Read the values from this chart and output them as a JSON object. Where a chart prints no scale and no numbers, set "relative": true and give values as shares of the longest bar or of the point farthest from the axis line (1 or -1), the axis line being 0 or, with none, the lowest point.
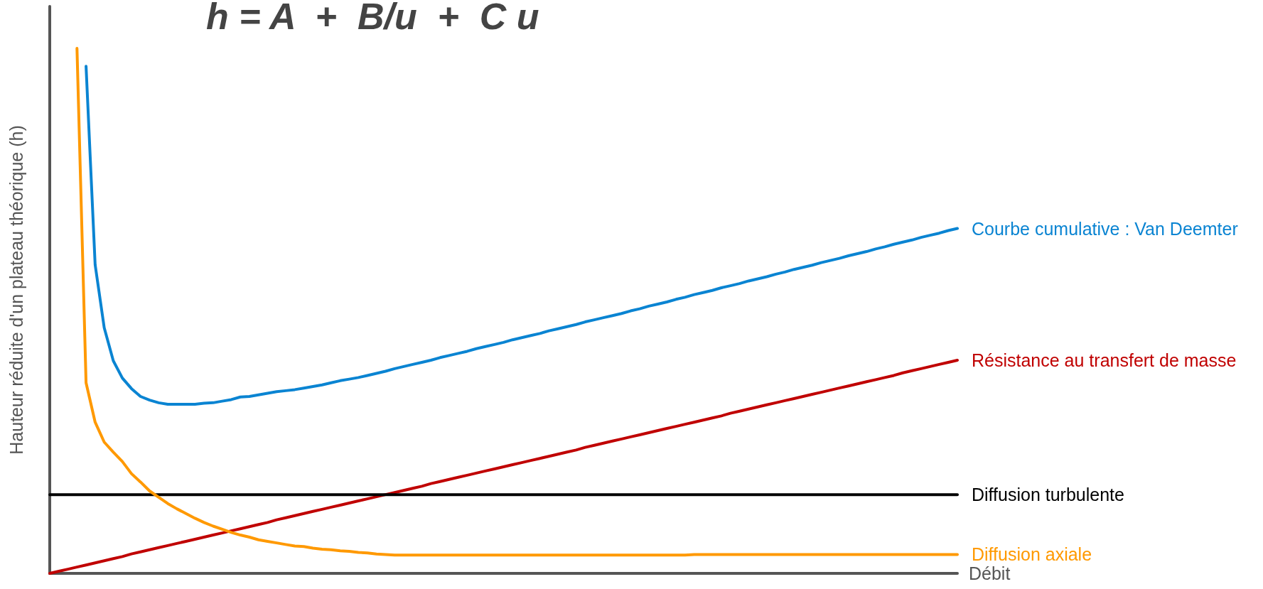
{
  "chart_data": {
    "type": "line",
    "relative": true,
    "title": "h = A  +  B/u  +  C u",
    "xlabel": "Débit",
    "ylabel": "Hauteur réduite d'un plateau théorique (h)",
    "grid": false,
    "marker": "none",
    "line_style": "solid",
    "categories": [
      null,
      null,
      null,
      null,
      null,
      null,
      null,
      null,
      null,
      null,
      null,
      null,
      null,
      null,
      null,
      null,
      null,
      null,
      null,
      null,
      null,
      null,
      null,
      null,
      null,
      null,
      null,
      null,
      null,
      null,
      null,
      null,
      null,
      null,
      null,
      null,
      null,
      null,
      null,
      null,
      null,
      null,
      null,
      null,
      null,
      null,
      null,
      null,
      null,
      null,
      null,
      null,
      null,
      null,
      null,
      null,
      null,
      null,
      null,
      null,
      null,
      null,
      null,
      null,
      null,
      null,
      null,
      null,
      null,
      null,
      null,
      null,
      null,
      null,
      null,
      null,
      null,
      null,
      null,
      null,
      null,
      null,
      null,
      null,
      null,
      null,
      null,
      null,
      null,
      null,
      null,
      null,
      null,
      null,
      null,
      null,
      null,
      null,
      null,
      null,
      null
    ],
    "series": [
      {
        "name": "Courbe cumulative : Van Deemter",
        "color": "#0a84d2",
        "values": [
          null,
          null,
          null,
          null,
          0.966,
          0.588,
          0.468,
          0.405,
          0.372,
          0.352,
          0.337,
          0.33,
          0.325,
          0.322,
          0.322,
          0.322,
          0.322,
          0.324,
          0.325,
          0.328,
          0.331,
          0.336,
          0.337,
          0.34,
          0.343,
          0.346,
          0.348,
          0.35,
          0.353,
          0.356,
          0.359,
          0.363,
          0.367,
          0.37,
          0.373,
          0.377,
          0.381,
          0.385,
          0.39,
          0.394,
          0.398,
          0.402,
          0.406,
          0.411,
          0.415,
          0.419,
          0.423,
          0.428,
          0.432,
          0.436,
          0.44,
          0.445,
          0.449,
          0.453,
          0.457,
          0.462,
          0.466,
          0.47,
          0.474,
          0.479,
          0.483,
          0.487,
          0.491,
          0.495,
          0.5,
          0.504,
          0.509,
          0.513,
          0.517,
          0.522,
          0.526,
          0.531,
          0.535,
          0.539,
          0.544,
          0.548,
          0.552,
          0.557,
          0.561,
          0.565,
          0.57,
          0.574,
          0.579,
          0.583,
          0.587,
          0.592,
          0.596,
          0.6,
          0.605,
          0.609,
          0.613,
          0.618,
          0.622,
          0.627,
          0.631,
          0.635,
          0.64,
          0.644,
          0.648,
          0.653,
          0.657
        ]
      },
      {
        "name": "Résistance au transfert de masse",
        "color": "#c00000",
        "values": [
          0,
          0.004,
          0.008,
          0.012,
          0.016,
          0.02,
          0.024,
          0.028,
          0.032,
          0.037,
          0.041,
          0.045,
          0.049,
          0.053,
          0.057,
          0.061,
          0.065,
          0.069,
          0.073,
          0.077,
          0.081,
          0.085,
          0.089,
          0.093,
          0.097,
          0.102,
          0.106,
          0.11,
          0.114,
          0.118,
          0.122,
          0.126,
          0.13,
          0.134,
          0.138,
          0.142,
          0.146,
          0.15,
          0.154,
          0.158,
          0.162,
          0.166,
          0.171,
          0.175,
          0.179,
          0.183,
          0.187,
          0.191,
          0.195,
          0.199,
          0.203,
          0.207,
          0.211,
          0.215,
          0.219,
          0.223,
          0.227,
          0.231,
          0.235,
          0.24,
          0.244,
          0.248,
          0.252,
          0.256,
          0.26,
          0.264,
          0.268,
          0.272,
          0.276,
          0.28,
          0.284,
          0.288,
          0.292,
          0.296,
          0.3,
          0.305,
          0.309,
          0.313,
          0.317,
          0.321,
          0.325,
          0.329,
          0.333,
          0.337,
          0.341,
          0.345,
          0.349,
          0.353,
          0.357,
          0.361,
          0.365,
          0.369,
          0.373,
          0.377,
          0.382,
          0.386,
          0.39,
          0.394,
          0.398,
          0.402,
          0.406
        ]
      },
      {
        "name": "Diffusion turbulente",
        "color": "#000000",
        "values": [
          0.15,
          0.15,
          0.15,
          0.15,
          0.15,
          0.15,
          0.15,
          0.15,
          0.15,
          0.15,
          0.15,
          0.15,
          0.15,
          0.15,
          0.15,
          0.15,
          0.15,
          0.15,
          0.15,
          0.15,
          0.15,
          0.15,
          0.15,
          0.15,
          0.15,
          0.15,
          0.15,
          0.15,
          0.15,
          0.15,
          0.15,
          0.15,
          0.15,
          0.15,
          0.15,
          0.15,
          0.15,
          0.15,
          0.15,
          0.15,
          0.15,
          0.15,
          0.15,
          0.15,
          0.15,
          0.15,
          0.15,
          0.15,
          0.15,
          0.15,
          0.15,
          0.15,
          0.15,
          0.15,
          0.15,
          0.15,
          0.15,
          0.15,
          0.15,
          0.15,
          0.15,
          0.15,
          0.15,
          0.15,
          0.15,
          0.15,
          0.15,
          0.15,
          0.15,
          0.15,
          0.15,
          0.15,
          0.15,
          0.15,
          0.15,
          0.15,
          0.15,
          0.15,
          0.15,
          0.15,
          0.15,
          0.15,
          0.15,
          0.15,
          0.15,
          0.15,
          0.15,
          0.15,
          0.15,
          0.15,
          0.15,
          0.15,
          0.15,
          0.15,
          0.15,
          0.15,
          0.15,
          0.15,
          0.15,
          0.15,
          0.15
        ]
      },
      {
        "name": "Diffusion axiale",
        "color": "#ff9900",
        "values": [
          null,
          null,
          null,
          1,
          0.363,
          0.288,
          0.25,
          0.231,
          0.213,
          0.19,
          0.174,
          0.157,
          0.145,
          0.133,
          0.123,
          0.114,
          0.105,
          0.097,
          0.09,
          0.084,
          0.078,
          0.073,
          0.069,
          0.064,
          0.061,
          0.058,
          0.055,
          0.052,
          0.051,
          0.048,
          0.046,
          0.045,
          0.043,
          0.042,
          0.04,
          0.039,
          0.037,
          0.036,
          0.035,
          0.035,
          0.035,
          0.035,
          0.035,
          0.035,
          0.035,
          0.035,
          0.035,
          0.035,
          0.035,
          0.035,
          0.035,
          0.035,
          0.035,
          0.035,
          0.035,
          0.035,
          0.035,
          0.035,
          0.035,
          0.035,
          0.035,
          0.035,
          0.035,
          0.035,
          0.035,
          0.035,
          0.035,
          0.035,
          0.035,
          0.035,
          0.035,
          0.036,
          0.036,
          0.036,
          0.036,
          0.036,
          0.036,
          0.036,
          0.036,
          0.036,
          0.036,
          0.036,
          0.036,
          0.036,
          0.036,
          0.036,
          0.036,
          0.036,
          0.036,
          0.036,
          0.036,
          0.036,
          0.036,
          0.036,
          0.036,
          0.036,
          0.036,
          0.036,
          0.036,
          0.036,
          0.036
        ]
      }
    ]
  }
}
